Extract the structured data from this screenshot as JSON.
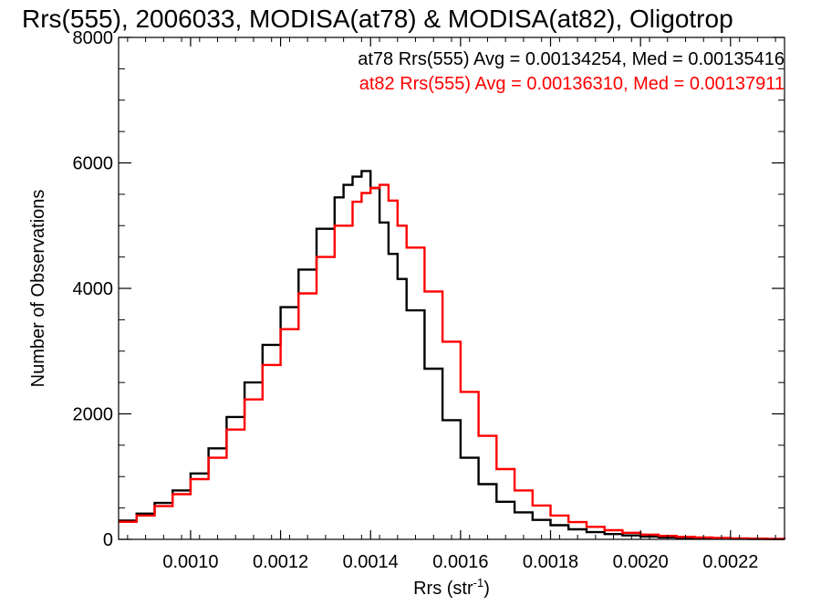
{
  "chart_data": {
    "type": "line",
    "title": "Rrs(555), 2006033, MODISA(at78) & MODISA(at82), Oligotrop",
    "xlabel": "Rrs (str",
    "xlabel_sup": "-1",
    "xlabel_close": ")",
    "ylabel": "Number of Observations",
    "xlim": [
      0.00084,
      0.00232
    ],
    "ylim": [
      0,
      8000
    ],
    "x_ticks": [
      0.001,
      0.0012,
      0.0014,
      0.0016,
      0.0018,
      0.002,
      0.0022
    ],
    "x_tick_labels": [
      "0.0010",
      "0.0012",
      "0.0014",
      "0.0016",
      "0.0018",
      "0.0020",
      "0.0022"
    ],
    "y_ticks": [
      0,
      2000,
      4000,
      6000,
      8000
    ],
    "y_tick_labels": [
      "0",
      "2000",
      "4000",
      "6000",
      "8000"
    ],
    "grid": false,
    "legend_position": "top-right",
    "series": [
      {
        "name": "at78",
        "color": "#000000",
        "annotation": "at78 Rrs(555) Avg = 0.00134254, Med = 0.00135416",
        "x": [
          0.00084,
          0.00088,
          0.00092,
          0.00096,
          0.001,
          0.00104,
          0.00108,
          0.00112,
          0.00116,
          0.0012,
          0.00124,
          0.00128,
          0.00132,
          0.00134,
          0.00136,
          0.00138,
          0.0014,
          0.00142,
          0.00144,
          0.00146,
          0.00148,
          0.00152,
          0.00156,
          0.0016,
          0.00164,
          0.00168,
          0.00172,
          0.00176,
          0.0018,
          0.00184,
          0.00188,
          0.00192,
          0.00196,
          0.002,
          0.00204,
          0.00208,
          0.00212,
          0.00216,
          0.0022,
          0.00224,
          0.00228,
          0.00232
        ],
        "y": [
          300,
          410,
          580,
          780,
          1050,
          1450,
          1950,
          2500,
          3100,
          3700,
          4300,
          4950,
          5450,
          5650,
          5780,
          5870,
          5600,
          5050,
          4550,
          4150,
          3650,
          2720,
          1900,
          1300,
          880,
          600,
          430,
          310,
          225,
          160,
          115,
          85,
          62,
          45,
          32,
          24,
          18,
          13,
          9,
          7,
          5,
          3
        ]
      },
      {
        "name": "at82",
        "color": "#ff0000",
        "annotation": "at82 Rrs(555) Avg = 0.00136310, Med = 0.00137911",
        "x": [
          0.00084,
          0.00088,
          0.00092,
          0.00096,
          0.001,
          0.00104,
          0.00108,
          0.00112,
          0.00116,
          0.0012,
          0.00124,
          0.00128,
          0.00132,
          0.00136,
          0.00138,
          0.0014,
          0.00142,
          0.00144,
          0.00146,
          0.00148,
          0.00152,
          0.00156,
          0.0016,
          0.00164,
          0.00168,
          0.00172,
          0.00176,
          0.0018,
          0.00184,
          0.00188,
          0.00192,
          0.00196,
          0.002,
          0.00204,
          0.00208,
          0.00212,
          0.00216,
          0.0022,
          0.00224,
          0.00228,
          0.00232
        ],
        "y": [
          280,
          380,
          530,
          720,
          960,
          1300,
          1750,
          2230,
          2780,
          3350,
          3920,
          4500,
          5000,
          5380,
          5520,
          5600,
          5650,
          5400,
          5000,
          4650,
          3950,
          3150,
          2350,
          1650,
          1120,
          780,
          540,
          380,
          275,
          200,
          145,
          105,
          75,
          55,
          40,
          30,
          22,
          16,
          12,
          8,
          5
        ]
      }
    ]
  }
}
